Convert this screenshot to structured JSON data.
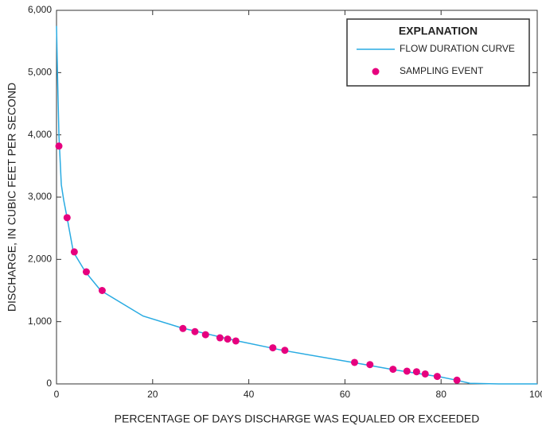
{
  "chart_data": {
    "type": "line",
    "xlabel": "PERCENTAGE OF DAYS DISCHARGE WAS EQUALED OR EXCEEDED",
    "ylabel": "DISCHARGE, IN CUBIC FEET PER SECOND",
    "legend_title": "EXPLANATION",
    "legend": "upper right",
    "xlim": [
      0,
      100
    ],
    "ylim": [
      0,
      6000
    ],
    "xticks": [
      0,
      20,
      40,
      60,
      80,
      100
    ],
    "yticks": [
      0,
      {
        "value": 1000,
        "label": "1,000"
      },
      {
        "value": 2000,
        "label": "2,000"
      },
      {
        "value": 3000,
        "label": "3,000"
      },
      {
        "value": 4000,
        "label": "4,000"
      },
      {
        "value": 5000,
        "label": "5,000"
      },
      {
        "value": 6000,
        "label": "6,000"
      }
    ],
    "series": [
      {
        "name": "FLOW DURATION CURVE",
        "type": "line",
        "color": "#29abe2",
        "x": [
          0,
          0.2,
          0.5,
          1,
          1.5,
          2.2,
          3.5,
          6,
          9.2,
          18,
          26,
          37,
          47,
          62,
          70,
          80,
          83.2,
          86,
          92,
          100
        ],
        "values": [
          5750,
          5000,
          4000,
          3200,
          2950,
          2670,
          2120,
          1800,
          1500,
          1090,
          900,
          700,
          540,
          340,
          230,
          110,
          60,
          10,
          0,
          0
        ]
      },
      {
        "name": "SAMPLING EVENT",
        "type": "scatter",
        "color": "#e6007e",
        "x": [
          0.5,
          2.2,
          3.7,
          6.2,
          9.5,
          26.3,
          28.8,
          31,
          34,
          35.6,
          37.3,
          45,
          47.5,
          62,
          65.2,
          70,
          72.9,
          74.9,
          76.7,
          79.2,
          83.3
        ],
        "values": [
          3820,
          2670,
          2120,
          1800,
          1500,
          890,
          840,
          790,
          740,
          720,
          690,
          580,
          540,
          345,
          310,
          235,
          205,
          195,
          160,
          120,
          60
        ]
      }
    ]
  }
}
